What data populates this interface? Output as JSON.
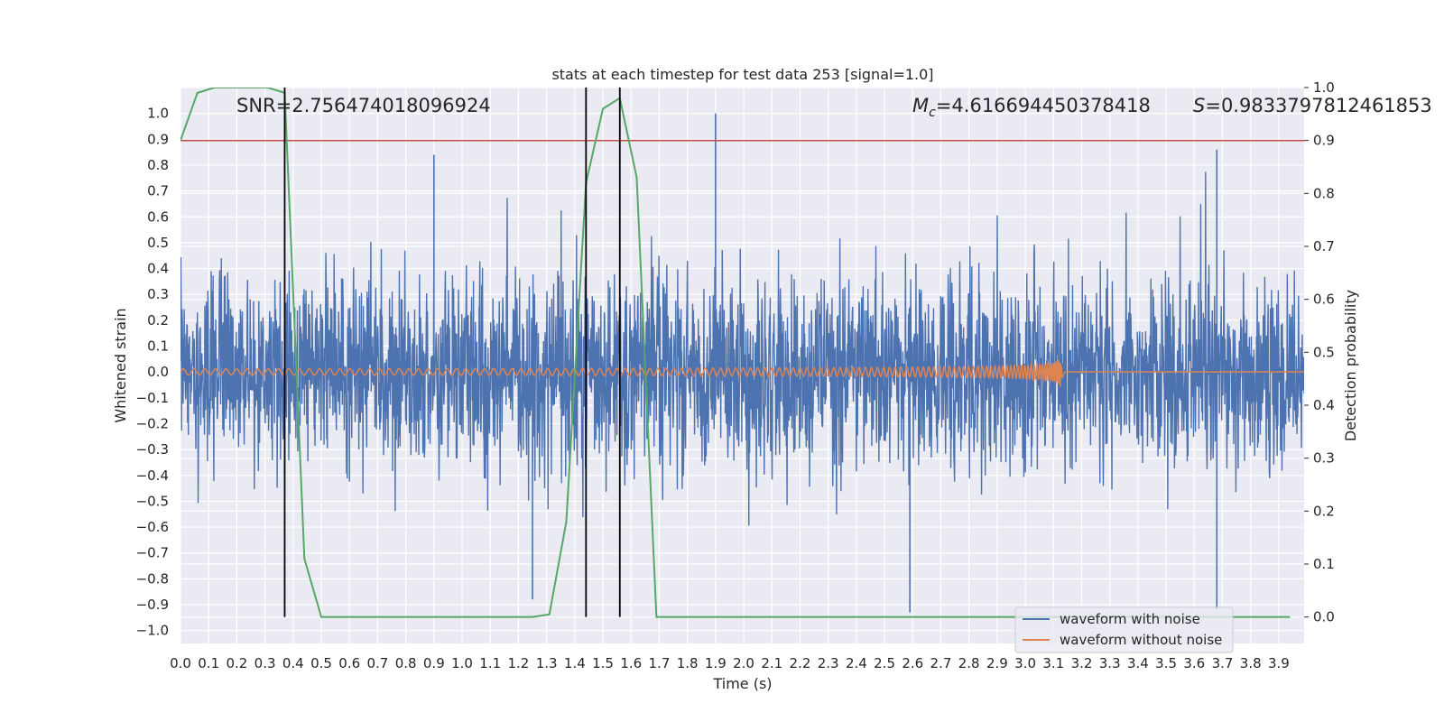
{
  "chart_data": {
    "type": "line",
    "title": "stats at each timestep for test data 253 [signal=1.0]",
    "xlabel": "Time (s)",
    "ylabel": "Whitened strain",
    "y2label": "Detection probability",
    "xlim": [
      0.0,
      3.99
    ],
    "ylim": [
      -1.05,
      1.1
    ],
    "y2lim": [
      -0.05,
      1.0
    ],
    "x_ticks": [
      0.0,
      0.1,
      0.2,
      0.3,
      0.4,
      0.5,
      0.6,
      0.7,
      0.8,
      0.9,
      1.0,
      1.1,
      1.2,
      1.3,
      1.4,
      1.5,
      1.6,
      1.7,
      1.8,
      1.9,
      2.0,
      2.1,
      2.2,
      2.3,
      2.4,
      2.5,
      2.6,
      2.7,
      2.8,
      2.9,
      3.0,
      3.1,
      3.2,
      3.3,
      3.4,
      3.5,
      3.6,
      3.7,
      3.8,
      3.9
    ],
    "x_tick_labels": [
      "0.0",
      "0.1",
      "0.2",
      "0.3",
      "0.4",
      "0.5",
      "0.6",
      "0.7",
      "0.8",
      "0.9",
      "1.0",
      "1.1",
      "1.2",
      "1.3",
      "1.4",
      "1.5",
      "1.6",
      "1.7",
      "1.8",
      "1.9",
      "2.0",
      "2.1",
      "2.2",
      "2.3",
      "2.4",
      "2.5",
      "2.6",
      "2.7",
      "2.8",
      "2.9",
      "3.0",
      "3.1",
      "3.2",
      "3.3",
      "3.4",
      "3.5",
      "3.6",
      "3.7",
      "3.8",
      "3.9"
    ],
    "y_ticks": [
      1.0,
      0.9,
      0.8,
      0.7,
      0.6,
      0.5,
      0.4,
      0.3,
      0.2,
      0.1,
      0.0,
      -0.1,
      -0.2,
      -0.3,
      -0.4,
      -0.5,
      -0.6,
      -0.7,
      -0.8,
      -0.9,
      -1.0
    ],
    "y_tick_labels": [
      "1.0",
      "0.9",
      "0.8",
      "0.7",
      "0.6",
      "0.5",
      "0.4",
      "0.3",
      "0.2",
      "0.1",
      "0.0",
      "−0.1",
      "−0.2",
      "−0.3",
      "−0.4",
      "−0.5",
      "−0.6",
      "−0.7",
      "−0.8",
      "−0.9",
      "−1.0"
    ],
    "y2_ticks": [
      1.0,
      0.9,
      0.8,
      0.7,
      0.6,
      0.5,
      0.4,
      0.3,
      0.2,
      0.1,
      0.0
    ],
    "y2_tick_labels": [
      "1.0",
      "0.9",
      "0.8",
      "0.7",
      "0.6",
      "0.5",
      "0.4",
      "0.3",
      "0.2",
      "0.1",
      "0.0"
    ],
    "grid": true,
    "legend_position": "bottom-right",
    "annotations": {
      "snr": "SNR=2.756474018096924",
      "mc_symbol": "M",
      "mc_sub": "c",
      "mc_value": "=4.616694450378418",
      "s_symbol": "S",
      "s_value": "=0.9833797812461853"
    },
    "series": [
      {
        "name": "waveform with noise",
        "color": "#4c72b0",
        "kind": "noise",
        "amplitude": 0.3,
        "spikes": [
          [
            0.9,
            0.84
          ],
          [
            1.9,
            1.0
          ],
          [
            3.68,
            0.86
          ],
          [
            2.59,
            -0.93
          ],
          [
            3.68,
            -0.92
          ],
          [
            1.25,
            -0.88
          ]
        ]
      },
      {
        "name": "waveform without noise",
        "color": "#dd8452",
        "kind": "chirp",
        "t_merger": 3.13,
        "amp_start": 0.012,
        "amp_peak": 0.07
      }
    ],
    "probability_series": {
      "axis": "right",
      "color": "#55a868",
      "x": [
        0.0,
        0.06,
        0.12,
        0.19,
        0.25,
        0.31,
        0.37,
        0.44,
        0.5,
        0.56,
        0.62,
        0.69,
        0.75,
        0.81,
        0.87,
        0.94,
        1.0,
        1.06,
        1.12,
        1.19,
        1.25,
        1.31,
        1.37,
        1.44,
        1.5,
        1.56,
        1.62,
        1.69,
        1.75,
        1.81,
        1.87,
        1.94,
        2.0,
        2.5,
        3.0,
        3.5,
        3.94
      ],
      "y": [
        0.9,
        0.99,
        1.0,
        1.0,
        1.0,
        1.0,
        0.99,
        0.11,
        0.0,
        0.0,
        0.0,
        0.0,
        0.0,
        0.0,
        0.0,
        0.0,
        0.0,
        0.0,
        0.0,
        0.0,
        0.0,
        0.005,
        0.18,
        0.82,
        0.96,
        0.98,
        0.83,
        0.0,
        0.0,
        0.0,
        0.0,
        0.0,
        0.0,
        0.0,
        0.0,
        0.0,
        0.0
      ]
    },
    "threshold": {
      "axis": "right",
      "value": 0.9,
      "color": "#c44e52"
    },
    "vertical_markers": {
      "x": [
        0.37,
        1.44,
        1.56
      ],
      "y2_range": [
        0.0,
        1.0
      ],
      "color": "#000000"
    }
  }
}
